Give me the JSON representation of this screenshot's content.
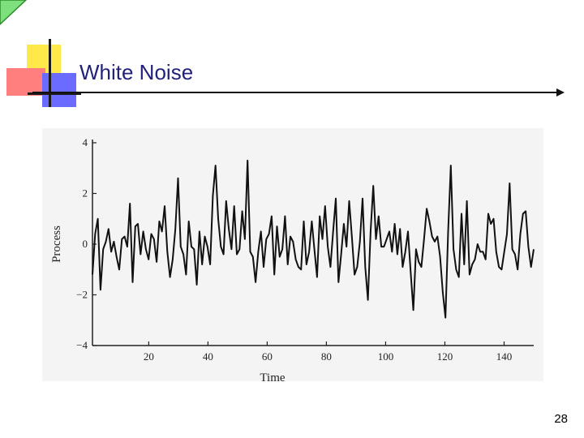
{
  "slide": {
    "title": "White Noise",
    "page_number": "28"
  },
  "colors": {
    "title_text": "#22227a",
    "accent_yellow": "#ffe84a",
    "accent_red": "#ff7f7f",
    "accent_blue": "#6b6bff",
    "corner_triangle": "#7de07d"
  },
  "chart_data": {
    "type": "line",
    "xlabel": "Time",
    "ylabel": "Process",
    "xlim": [
      1,
      150
    ],
    "ylim": [
      -4,
      4
    ],
    "x_ticks": [
      20,
      40,
      60,
      80,
      100,
      120,
      140
    ],
    "y_ticks": [
      -4,
      -2,
      0,
      2,
      4
    ],
    "y_tick_labels": [
      "−4",
      "−2",
      "0",
      "2",
      "4"
    ],
    "grid": false,
    "series": [
      {
        "values": [
          -1.2,
          0.4,
          1.0,
          -1.8,
          -0.2,
          0.1,
          0.6,
          -0.3,
          0.1,
          -0.5,
          -1.0,
          0.2,
          0.3,
          -0.1,
          1.6,
          -1.5,
          0.7,
          0.8,
          -0.4,
          0.5,
          -0.2,
          -0.6,
          0.4,
          0.2,
          -0.7,
          0.9,
          0.5,
          1.5,
          -0.3,
          -1.3,
          -0.6,
          0.6,
          2.6,
          -0.1,
          -0.4,
          -1.2,
          0.9,
          -0.1,
          -0.2,
          -1.6,
          0.5,
          -0.8,
          0.3,
          -0.1,
          -0.8,
          1.9,
          3.1,
          1.0,
          -0.1,
          -0.4,
          1.7,
          0.6,
          -0.2,
          1.5,
          -0.4,
          -0.2,
          1.3,
          0.2,
          3.3,
          -0.3,
          -0.5,
          -1.5,
          -0.3,
          0.5,
          -0.9,
          0.2,
          0.4,
          1.1,
          -1.2,
          0.7,
          -0.5,
          -0.2,
          1.1,
          -0.8,
          0.3,
          0.1,
          -0.6,
          -0.9,
          -1.0,
          0.9,
          -0.8,
          -0.3,
          0.9,
          -0.2,
          -1.3,
          1.1,
          0.2,
          1.5,
          -0.1,
          -0.9,
          0.5,
          1.8,
          -1.5,
          -0.4,
          0.8,
          -0.1,
          1.7,
          0.3,
          -1.2,
          -0.9,
          0.1,
          1.8,
          -0.9,
          -2.2,
          0.5,
          2.3,
          0.2,
          1.1,
          -0.1,
          -0.1,
          0.2,
          0.5,
          -0.3,
          0.8,
          -0.4,
          0.6,
          -0.9,
          -0.3,
          0.5,
          -1.1,
          -2.6,
          -0.2,
          -0.7,
          -0.9,
          0.2,
          1.4,
          0.9,
          0.3,
          0.1,
          0.3,
          -0.5,
          -1.9,
          -2.9,
          0.5,
          3.1,
          -0.2,
          -1.0,
          -1.3,
          1.2,
          -0.8,
          1.7,
          -1.2,
          -0.8,
          -0.6,
          0.0,
          -0.3,
          -0.3,
          -0.6,
          1.2,
          0.8,
          1.0,
          -0.3,
          -0.9,
          -1.0,
          -0.3,
          0.4,
          2.4,
          -0.2,
          -0.4,
          -1.0,
          0.4,
          1.2,
          1.3,
          -0.1,
          -0.9,
          -0.2
        ]
      }
    ]
  }
}
